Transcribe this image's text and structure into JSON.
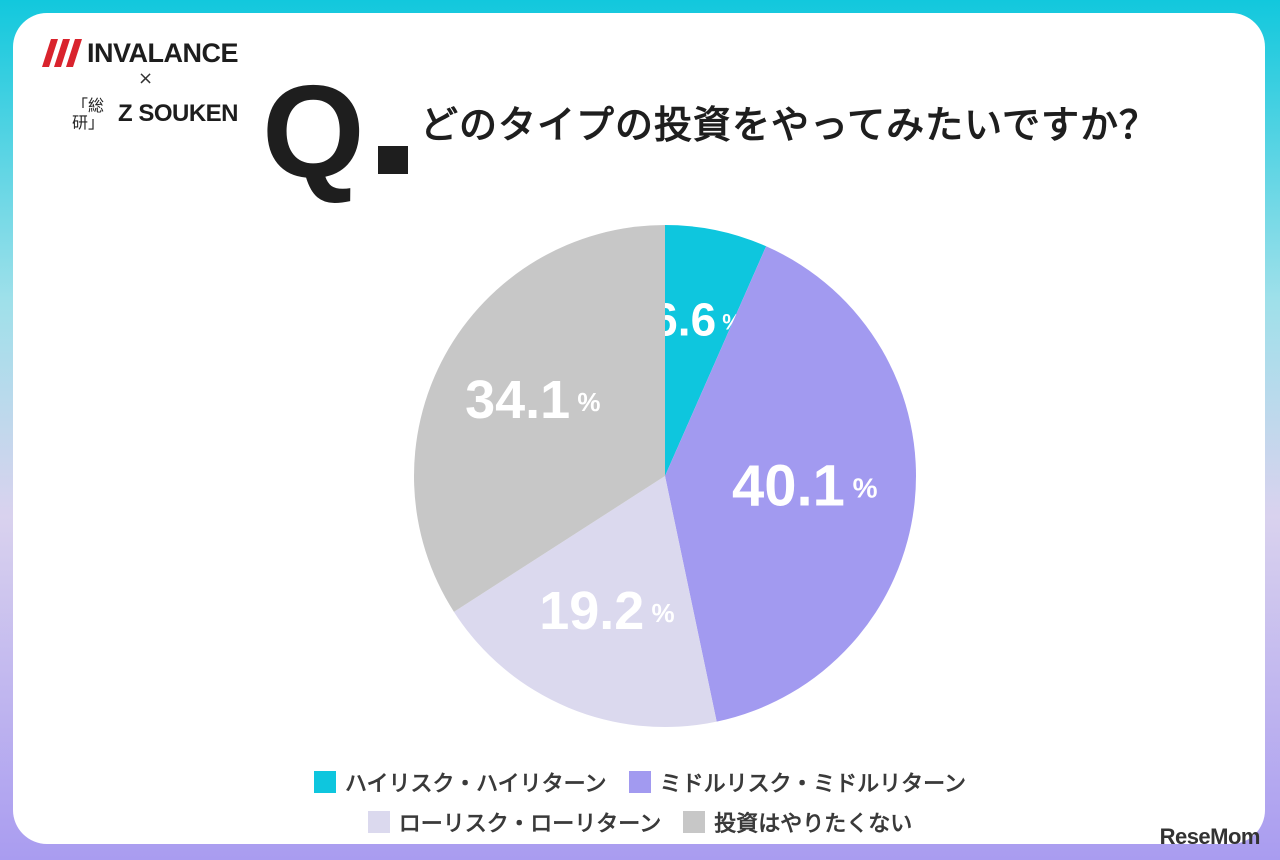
{
  "logos": {
    "invalance": "INVALANCE",
    "times": "×",
    "zsouken_mark": [
      "「総",
      "研」"
    ],
    "zsouken": "Z SOUKEN"
  },
  "question": {
    "q_letter": "Q",
    "text": "どのタイプの投資をやってみたいですか？"
  },
  "chart_data": {
    "type": "pie",
    "title": "どのタイプの投資をやってみたいですか？",
    "unit": "%",
    "slices": [
      {
        "name": "ハイリスク・ハイリターン",
        "value": 6.6,
        "label": "6.6",
        "color": "#0ec6de"
      },
      {
        "name": "ミドルリスク・ミドルリターン",
        "value": 40.1,
        "label": "40.1",
        "color": "#a29af0"
      },
      {
        "name": "ローリスク・ローリターン",
        "value": 19.2,
        "label": "19.2",
        "color": "#dbd9ee"
      },
      {
        "name": "投資はやりたくない",
        "value": 34.1,
        "label": "34.1",
        "color": "#c7c7c7"
      }
    ],
    "start": "12 o'clock, clockwise",
    "legend": "bottom"
  },
  "watermark": "ReseMom"
}
